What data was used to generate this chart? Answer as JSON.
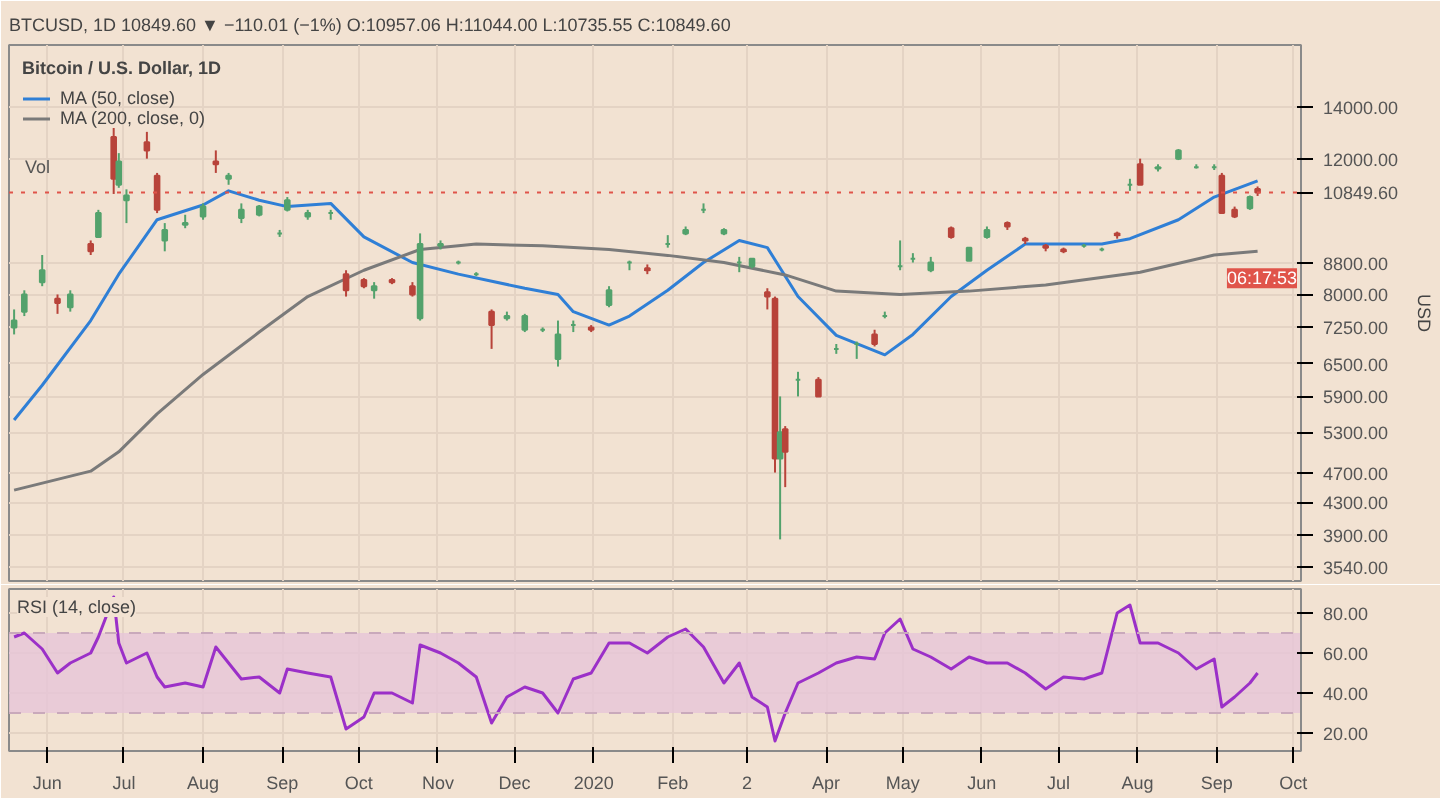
{
  "chart_data": [
    {
      "type": "candlestick",
      "title": "Bitcoin / U.S. Dollar, 1D",
      "subtitle": "BTCUSD, 1D  10849.60 ▼ −110.01 (−1%) O:10957.06 H:11044.00 L:10735.55 C:10849.60",
      "ylabel": "USD",
      "x": [
        "2019-05-19",
        "2019-05-23",
        "2019-05-30",
        "2019-06-05",
        "2019-06-10",
        "2019-06-18",
        "2019-06-21",
        "2019-06-27",
        "2019-06-29",
        "2019-07-02",
        "2019-07-10",
        "2019-07-14",
        "2019-07-17",
        "2019-07-25",
        "2019-08-01",
        "2019-08-06",
        "2019-08-11",
        "2019-08-16",
        "2019-08-23",
        "2019-08-31",
        "2019-09-03",
        "2019-09-11",
        "2019-09-20",
        "2019-09-26",
        "2019-10-03",
        "2019-10-07",
        "2019-10-14",
        "2019-10-22",
        "2019-10-25",
        "2019-11-02",
        "2019-11-09",
        "2019-11-16",
        "2019-11-22",
        "2019-11-28",
        "2019-12-05",
        "2019-12-12",
        "2019-12-18",
        "2019-12-24",
        "2019-12-31",
        "2020-01-07",
        "2020-01-15",
        "2020-01-22",
        "2020-01-30",
        "2020-02-06",
        "2020-02-13",
        "2020-02-21",
        "2020-02-27",
        "2020-03-03",
        "2020-03-09",
        "2020-03-12",
        "2020-03-14",
        "2020-03-16",
        "2020-03-21",
        "2020-03-29",
        "2020-04-05",
        "2020-04-13",
        "2020-04-20",
        "2020-04-24",
        "2020-04-30",
        "2020-05-05",
        "2020-05-12",
        "2020-05-20",
        "2020-05-27",
        "2020-06-03",
        "2020-06-11",
        "2020-06-18",
        "2020-06-26",
        "2020-07-03",
        "2020-07-11",
        "2020-07-18",
        "2020-07-24",
        "2020-07-29",
        "2020-08-02",
        "2020-08-09",
        "2020-08-17",
        "2020-08-24",
        "2020-08-31",
        "2020-09-03",
        "2020-09-08",
        "2020-09-14",
        "2020-09-17"
      ],
      "ohlc": [
        [
          7250,
          7650,
          7100,
          7400
        ],
        [
          7600,
          8100,
          7500,
          8000
        ],
        [
          8300,
          9000,
          8200,
          8600
        ],
        [
          7900,
          8000,
          7550,
          7800
        ],
        [
          7700,
          8100,
          7600,
          8000
        ],
        [
          9300,
          9400,
          9000,
          9100
        ],
        [
          9500,
          10300,
          9500,
          10200
        ],
        [
          12800,
          13150,
          10800,
          11300
        ],
        [
          11100,
          12200,
          11000,
          11900
        ],
        [
          10600,
          10950,
          9900,
          10750
        ],
        [
          12600,
          13000,
          12000,
          12300
        ],
        [
          11400,
          11500,
          10200,
          10300
        ],
        [
          9400,
          9900,
          9100,
          9700
        ],
        [
          9850,
          10150,
          9750,
          9900
        ],
        [
          10100,
          10500,
          10000,
          10400
        ],
        [
          11900,
          12300,
          11500,
          11800
        ],
        [
          11300,
          11500,
          11100,
          11400
        ],
        [
          10050,
          10500,
          9900,
          10300
        ],
        [
          10150,
          10450,
          10100,
          10400
        ],
        [
          9600,
          9700,
          9500,
          9600
        ],
        [
          10300,
          10700,
          10250,
          10600
        ],
        [
          10100,
          10300,
          10000,
          10200
        ],
        [
          10200,
          10300,
          10000,
          10200
        ],
        [
          8500,
          8600,
          7950,
          8100
        ],
        [
          8350,
          8400,
          8150,
          8200
        ],
        [
          8100,
          8300,
          7900,
          8200
        ],
        [
          8350,
          8400,
          8250,
          8300
        ],
        [
          8200,
          8300,
          7950,
          8000
        ],
        [
          7450,
          9600,
          7400,
          9300
        ],
        [
          9250,
          9400,
          9150,
          9300
        ],
        [
          8800,
          8850,
          8750,
          8800
        ],
        [
          8500,
          8550,
          8450,
          8500
        ],
        [
          7600,
          7650,
          6800,
          7300
        ],
        [
          7450,
          7600,
          7400,
          7500
        ],
        [
          7200,
          7550,
          7150,
          7500
        ],
        [
          7200,
          7250,
          7150,
          7200
        ],
        [
          6600,
          7400,
          6450,
          7100
        ],
        [
          7300,
          7400,
          7150,
          7300
        ],
        [
          7250,
          7300,
          7150,
          7200
        ],
        [
          7750,
          8200,
          7700,
          8100
        ],
        [
          8800,
          8850,
          8600,
          8800
        ],
        [
          8650,
          8750,
          8500,
          8600
        ],
        [
          9300,
          9550,
          9200,
          9300
        ],
        [
          9600,
          9800,
          9550,
          9700
        ],
        [
          10300,
          10500,
          10200,
          10300
        ],
        [
          9600,
          9750,
          9550,
          9700
        ],
        [
          8800,
          8950,
          8550,
          8800
        ],
        [
          8700,
          8900,
          8650,
          8900
        ],
        [
          8050,
          8150,
          7650,
          7950
        ],
        [
          7900,
          7950,
          4700,
          4900
        ],
        [
          4900,
          5900,
          3850,
          5300
        ],
        [
          5350,
          5400,
          4500,
          5000
        ],
        [
          6200,
          6350,
          5900,
          6200
        ],
        [
          6200,
          6250,
          5900,
          5900
        ],
        [
          6800,
          6900,
          6700,
          6800
        ],
        [
          6900,
          6950,
          6600,
          6900
        ],
        [
          7100,
          7200,
          6850,
          6900
        ],
        [
          7500,
          7600,
          7450,
          7500
        ],
        [
          8700,
          9400,
          8600,
          8700
        ],
        [
          8900,
          9050,
          8800,
          8900
        ],
        [
          8600,
          8950,
          8550,
          8800
        ],
        [
          9750,
          9800,
          9450,
          9500
        ],
        [
          8850,
          9200,
          8850,
          9200
        ],
        [
          9500,
          9800,
          9450,
          9700
        ],
        [
          9900,
          9950,
          9700,
          9800
        ],
        [
          9450,
          9500,
          9300,
          9400
        ],
        [
          9250,
          9300,
          9100,
          9200
        ],
        [
          9150,
          9200,
          9050,
          9100
        ],
        [
          9250,
          9300,
          9200,
          9250
        ],
        [
          9150,
          9200,
          9100,
          9150
        ],
        [
          9600,
          9650,
          9450,
          9550
        ],
        [
          11100,
          11300,
          10900,
          11100
        ],
        [
          11800,
          12000,
          11100,
          11100
        ],
        [
          11650,
          11800,
          11550,
          11700
        ],
        [
          12000,
          12350,
          11950,
          12300
        ],
        [
          11700,
          11800,
          11650,
          11700
        ],
        [
          11700,
          11800,
          11600,
          11700
        ],
        [
          11400,
          11500,
          10200,
          10200
        ],
        [
          10300,
          10400,
          10050,
          10100
        ],
        [
          10350,
          10750,
          10300,
          10700
        ],
        [
          10957.06,
          11044,
          10735.55,
          10849.6
        ]
      ],
      "series": [
        {
          "type": "line",
          "name": "MA (50, close)",
          "color": "#2f7fd6",
          "x": [
            "2019-05-19",
            "2019-05-30",
            "2019-06-18",
            "2019-06-29",
            "2019-07-14",
            "2019-08-01",
            "2019-08-11",
            "2019-08-23",
            "2019-09-03",
            "2019-09-20",
            "2019-10-03",
            "2019-10-22",
            "2019-11-09",
            "2019-12-05",
            "2019-12-18",
            "2019-12-24",
            "2020-01-07",
            "2020-01-15",
            "2020-01-30",
            "2020-02-13",
            "2020-02-27",
            "2020-03-09",
            "2020-03-21",
            "2020-04-05",
            "2020-04-24",
            "2020-05-05",
            "2020-05-20",
            "2020-06-03",
            "2020-06-18",
            "2020-07-18",
            "2020-07-29",
            "2020-08-17",
            "2020-08-31",
            "2020-09-17"
          ],
          "values": [
            5500,
            6100,
            7400,
            8500,
            10000,
            10450,
            10900,
            10600,
            10400,
            10500,
            9500,
            8800,
            8500,
            8150,
            8000,
            7600,
            7300,
            7500,
            8100,
            8800,
            9400,
            9200,
            7950,
            7080,
            6680,
            7100,
            7950,
            8600,
            9300,
            9300,
            9450,
            10000,
            10700,
            11230
          ]
        },
        {
          "type": "line",
          "name": "MA (200, close, 0)",
          "color": "#7a7a7a",
          "x": [
            "2019-05-19",
            "2019-06-18",
            "2019-06-29",
            "2019-07-14",
            "2019-08-01",
            "2019-08-23",
            "2019-09-11",
            "2019-10-03",
            "2019-10-25",
            "2019-11-16",
            "2019-12-12",
            "2020-01-07",
            "2020-01-30",
            "2020-02-21",
            "2020-03-16",
            "2020-04-05",
            "2020-04-30",
            "2020-05-27",
            "2020-06-26",
            "2020-08-02",
            "2020-08-31",
            "2020-09-17"
          ],
          "values": [
            4460,
            4720,
            5000,
            5600,
            6300,
            7150,
            7950,
            8600,
            9150,
            9300,
            9250,
            9150,
            8990,
            8800,
            8480,
            8080,
            8000,
            8080,
            8230,
            8550,
            9000,
            9100
          ]
        }
      ],
      "annotations": [
        "Vol",
        "06:17:53"
      ],
      "ref_lines": [
        {
          "axis": "y",
          "value": 10849.6,
          "label": "10849.60",
          "color": "#e0544a",
          "line_style": "dotted"
        }
      ],
      "xlim": [
        "2019-05-17",
        "2020-10-04"
      ],
      "xticks": [
        {
          "value": "2019-06-01",
          "label": null
        },
        {
          "value": "2019-07-01",
          "label": null
        },
        {
          "value": "2019-08-01",
          "label": null
        },
        {
          "value": "2019-09-01",
          "label": null
        },
        {
          "value": "2019-10-01",
          "label": null
        },
        {
          "value": "2019-11-01",
          "label": null
        },
        {
          "value": "2019-12-01",
          "label": null
        },
        {
          "value": "2020-01-01",
          "label": null
        },
        {
          "value": "2020-02-01",
          "label": null
        },
        {
          "value": "2020-03-01",
          "label": null
        },
        {
          "value": "2020-04-01",
          "label": null
        },
        {
          "value": "2020-05-01",
          "label": null
        },
        {
          "value": "2020-06-01",
          "label": null
        },
        {
          "value": "2020-07-01",
          "label": null
        },
        {
          "value": "2020-08-01",
          "label": null
        },
        {
          "value": "2020-09-01",
          "label": null
        },
        {
          "value": "2020-10-01",
          "label": null
        }
      ],
      "ylim": [
        3400,
        16850
      ],
      "yticks": [
        {
          "value": 3540,
          "label": "3540.00"
        },
        {
          "value": 3900,
          "label": "3900.00"
        },
        {
          "value": 4300,
          "label": "4300.00"
        },
        {
          "value": 4700,
          "label": "4700.00"
        },
        {
          "value": 5300,
          "label": "5300.00"
        },
        {
          "value": 5900,
          "label": "5900.00"
        },
        {
          "value": 6500,
          "label": "6500.00"
        },
        {
          "value": 7250,
          "label": "7250.00"
        },
        {
          "value": 8000,
          "label": "8000.00"
        },
        {
          "value": 8800,
          "label": "8800.00"
        },
        {
          "value": 12000,
          "label": "12000.00"
        },
        {
          "value": 14000,
          "label": "14000.00"
        }
      ],
      "log": "y",
      "grid": true,
      "legend": "top left",
      "tick_labels": "y"
    },
    {
      "type": "line",
      "title": "RSI (14, close)",
      "series": [
        {
          "color": "#9b30c8",
          "x": [
            "2019-05-19",
            "2019-05-23",
            "2019-05-30",
            "2019-06-05",
            "2019-06-10",
            "2019-06-18",
            "2019-06-21",
            "2019-06-27",
            "2019-06-29",
            "2019-07-02",
            "2019-07-10",
            "2019-07-14",
            "2019-07-17",
            "2019-07-25",
            "2019-08-01",
            "2019-08-06",
            "2019-08-11",
            "2019-08-16",
            "2019-08-23",
            "2019-08-31",
            "2019-09-03",
            "2019-09-11",
            "2019-09-20",
            "2019-09-26",
            "2019-10-03",
            "2019-10-07",
            "2019-10-14",
            "2019-10-22",
            "2019-10-25",
            "2019-11-02",
            "2019-11-09",
            "2019-11-16",
            "2019-11-22",
            "2019-11-28",
            "2019-12-05",
            "2019-12-12",
            "2019-12-18",
            "2019-12-24",
            "2019-12-31",
            "2020-01-07",
            "2020-01-15",
            "2020-01-22",
            "2020-01-30",
            "2020-02-06",
            "2020-02-13",
            "2020-02-21",
            "2020-02-27",
            "2020-03-03",
            "2020-03-09",
            "2020-03-12",
            "2020-03-16",
            "2020-03-21",
            "2020-03-29",
            "2020-04-05",
            "2020-04-13",
            "2020-04-20",
            "2020-04-24",
            "2020-04-30",
            "2020-05-05",
            "2020-05-12",
            "2020-05-20",
            "2020-05-27",
            "2020-06-03",
            "2020-06-11",
            "2020-06-18",
            "2020-06-26",
            "2020-07-03",
            "2020-07-11",
            "2020-07-18",
            "2020-07-24",
            "2020-07-29",
            "2020-08-02",
            "2020-08-09",
            "2020-08-17",
            "2020-08-24",
            "2020-08-31",
            "2020-09-03",
            "2020-09-08",
            "2020-09-14",
            "2020-09-17"
          ],
          "values": [
            68,
            70,
            62,
            50,
            55,
            60,
            68,
            88,
            65,
            55,
            60,
            48,
            43,
            45,
            43,
            63,
            55,
            47,
            48,
            40,
            52,
            50,
            48,
            22,
            28,
            40,
            40,
            35,
            64,
            60,
            55,
            48,
            25,
            38,
            43,
            40,
            30,
            47,
            50,
            65,
            65,
            60,
            68,
            72,
            63,
            45,
            55,
            38,
            33,
            16,
            30,
            45,
            50,
            55,
            58,
            57,
            70,
            77,
            62,
            58,
            52,
            58,
            55,
            55,
            50,
            42,
            48,
            47,
            50,
            80,
            84,
            65,
            65,
            60,
            52,
            57,
            33,
            38,
            45,
            50
          ]
        }
      ],
      "xlim": [
        "2019-05-17",
        "2020-10-04"
      ],
      "xticks": [
        {
          "value": "2019-06-01",
          "label": "Jun"
        },
        {
          "value": "2019-07-01",
          "label": "Jul"
        },
        {
          "value": "2019-08-01",
          "label": "Aug"
        },
        {
          "value": "2019-09-01",
          "label": "Sep"
        },
        {
          "value": "2019-10-01",
          "label": "Oct"
        },
        {
          "value": "2019-11-01",
          "label": "Nov"
        },
        {
          "value": "2019-12-01",
          "label": "Dec"
        },
        {
          "value": "2020-01-01",
          "label": "2020"
        },
        {
          "value": "2020-02-01",
          "label": "Feb"
        },
        {
          "value": "2020-03-01",
          "label": "2"
        },
        {
          "value": "2020-04-01",
          "label": "Apr"
        },
        {
          "value": "2020-05-01",
          "label": "May"
        },
        {
          "value": "2020-06-01",
          "label": "Jun"
        },
        {
          "value": "2020-07-01",
          "label": "Jul"
        },
        {
          "value": "2020-08-01",
          "label": "Aug"
        },
        {
          "value": "2020-09-01",
          "label": "Sep"
        },
        {
          "value": "2020-10-01",
          "label": "Oct"
        }
      ],
      "ylim": [
        11,
        92
      ],
      "yticks": [
        {
          "value": 20,
          "label": "20.00"
        },
        {
          "value": 40,
          "label": "40.00"
        },
        {
          "value": 60,
          "label": "60.00"
        },
        {
          "value": 80,
          "label": "80.00"
        }
      ],
      "bands": [
        {
          "axis": "y",
          "from": 30,
          "to": 70,
          "color": "#e6c6d8"
        }
      ],
      "ref_lines": [
        {
          "axis": "y",
          "value": 30,
          "color": "#c9a9bb",
          "line_style": "dashed"
        },
        {
          "axis": "y",
          "value": 70,
          "color": "#c9a9bb",
          "line_style": "dashed"
        }
      ],
      "grid": true
    }
  ]
}
